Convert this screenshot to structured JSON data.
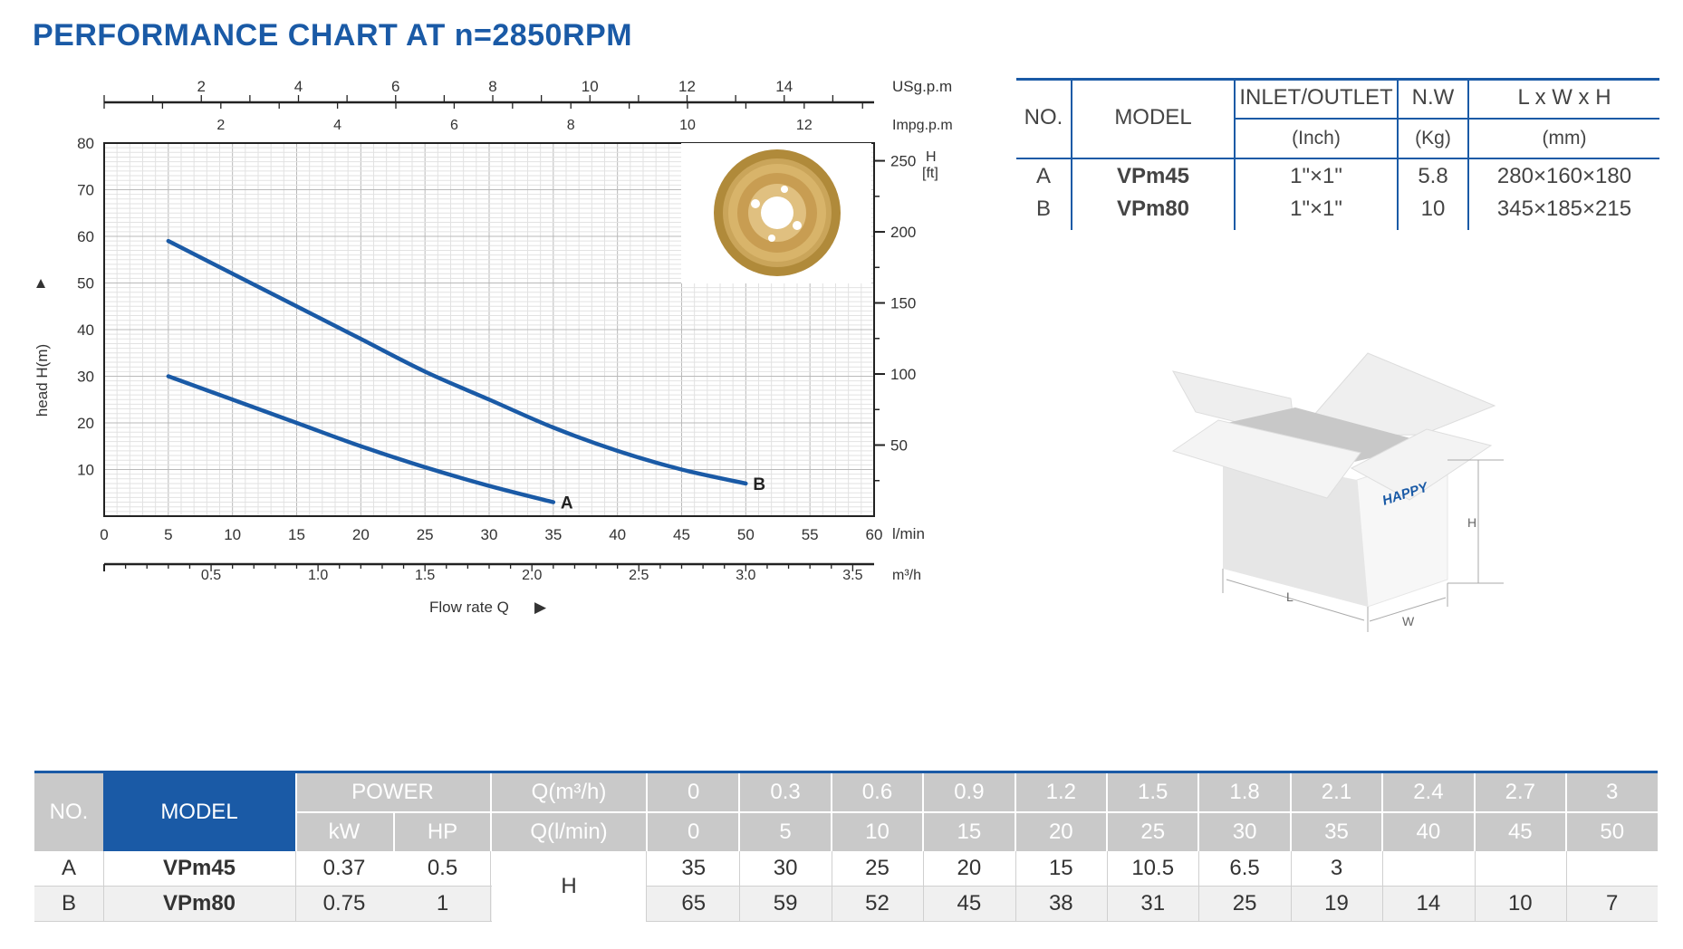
{
  "title": "PERFORMANCE CHART AT n=2850RPM",
  "chart_data": {
    "type": "line",
    "title": "PERFORMANCE CHART AT n=2850RPM",
    "xlabel": "Flow rate Q",
    "ylabel": "head H(m)",
    "x_unit_main": "l/min",
    "x_unit_m3h": "m³/h",
    "x_unit_usgpm": "USg.p.m",
    "x_unit_impgpm": "Impg.p.m",
    "y_right_label": "H",
    "y_right_unit": "[ft]",
    "xlim": [
      0,
      60
    ],
    "ylim": [
      0,
      80
    ],
    "x_ticks_lmin": [
      "0",
      "5",
      "10",
      "15",
      "20",
      "25",
      "30",
      "35",
      "40",
      "45",
      "50",
      "55",
      "60"
    ],
    "x_ticks_m3h": [
      "0.5",
      "1.0",
      "1.5",
      "2.0",
      "2.5",
      "3.0",
      "3.5"
    ],
    "x_ticks_usgpm": [
      "2",
      "4",
      "6",
      "8",
      "10",
      "12",
      "14"
    ],
    "x_ticks_impgpm": [
      "2",
      "4",
      "6",
      "8",
      "10",
      "12"
    ],
    "y_ticks_m": [
      "10",
      "20",
      "30",
      "40",
      "50",
      "60",
      "70",
      "80"
    ],
    "y_ticks_ft": [
      "50",
      "100",
      "150",
      "200",
      "250"
    ],
    "grid": true,
    "series": [
      {
        "name": "A",
        "color": "#1a5aa6",
        "x": [
          5,
          10,
          15,
          20,
          25,
          30,
          35
        ],
        "y": [
          30,
          25,
          20,
          15,
          10.5,
          6.5,
          3
        ]
      },
      {
        "name": "B",
        "color": "#1a5aa6",
        "x": [
          5,
          10,
          15,
          20,
          25,
          30,
          35,
          40,
          45,
          50
        ],
        "y": [
          59,
          52,
          45,
          38,
          31,
          25,
          19,
          14,
          10,
          7
        ]
      }
    ]
  },
  "spec_table": {
    "headers": {
      "no": "NO.",
      "model": "MODEL",
      "inlet": "INLET/OUTLET",
      "inlet_unit": "(Inch)",
      "nw": "N.W",
      "nw_unit": "(Kg)",
      "dims": "L x W x H",
      "dims_unit": "(mm)"
    },
    "rows": [
      {
        "no": "A",
        "model": "VPm45",
        "inlet": "1\"×1\"",
        "nw": "5.8",
        "dims": "280×160×180"
      },
      {
        "no": "B",
        "model": "VPm80",
        "inlet": "1\"×1\"",
        "nw": "10",
        "dims": "345×185×215"
      }
    ]
  },
  "box_labels": {
    "brand": "HAPPY",
    "h": "H",
    "l": "L",
    "w": "W"
  },
  "perf_table": {
    "headers": {
      "no": "NO.",
      "model": "MODEL",
      "power": "POWER",
      "kw": "kW",
      "hp": "HP",
      "q_m3h": "Q(m³/h)",
      "q_lmin": "Q(l/min)",
      "h": "H"
    },
    "q_m3h": [
      "0",
      "0.3",
      "0.6",
      "0.9",
      "1.2",
      "1.5",
      "1.8",
      "2.1",
      "2.4",
      "2.7",
      "3"
    ],
    "q_lmin": [
      "0",
      "5",
      "10",
      "15",
      "20",
      "25",
      "30",
      "35",
      "40",
      "45",
      "50"
    ],
    "rows": [
      {
        "no": "A",
        "model": "VPm45",
        "kw": "0.37",
        "hp": "0.5",
        "values": [
          "35",
          "30",
          "25",
          "20",
          "15",
          "10.5",
          "6.5",
          "3",
          "",
          "",
          ""
        ]
      },
      {
        "no": "B",
        "model": "VPm80",
        "kw": "0.75",
        "hp": "1",
        "values": [
          "65",
          "59",
          "52",
          "45",
          "38",
          "31",
          "25",
          "19",
          "14",
          "10",
          "7"
        ]
      }
    ]
  }
}
